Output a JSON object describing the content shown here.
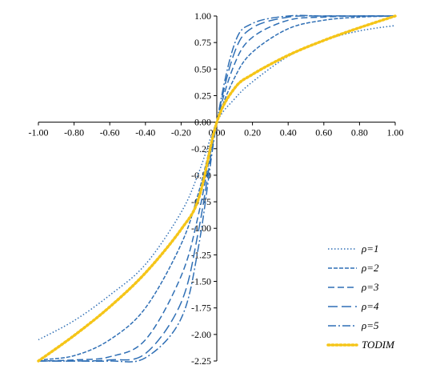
{
  "chart_data": {
    "type": "line",
    "title": "",
    "xlabel": "",
    "ylabel": "",
    "xlim": [
      -1.0,
      1.0
    ],
    "ylim": [
      -2.25,
      1.0
    ],
    "x_ticks": [
      "-1.00",
      "-0.80",
      "-0.60",
      "-0.40",
      "-0.20",
      "0.00",
      "0.20",
      "0.40",
      "0.60",
      "0.80",
      "1.00"
    ],
    "y_ticks": [
      "1.00",
      "0.75",
      "0.50",
      "0.25",
      "0.00",
      "-0.25",
      "-0.50",
      "-0.75",
      "-1.00",
      "-1.25",
      "-1.50",
      "-1.75",
      "-2.00",
      "-2.25"
    ],
    "legend_position": "bottom-right",
    "series": [
      {
        "name": "ρ=1",
        "color": "#2f6fb5",
        "dash": "1.5,2.5",
        "width": 1.5,
        "x": [
          -1.0,
          -0.8,
          -0.6,
          -0.4,
          -0.2,
          -0.1,
          0.0,
          0.1,
          0.2,
          0.4,
          0.6,
          0.8,
          1.0
        ],
        "y": [
          -2.05,
          -1.87,
          -1.63,
          -1.34,
          -0.85,
          -0.47,
          0.0,
          0.22,
          0.38,
          0.62,
          0.77,
          0.86,
          0.91
        ]
      },
      {
        "name": "ρ=2",
        "color": "#2f6fb5",
        "dash": "5,2",
        "width": 1.5,
        "x": [
          -1.0,
          -0.8,
          -0.6,
          -0.4,
          -0.2,
          -0.1,
          0.0,
          0.1,
          0.2,
          0.4,
          0.6,
          0.8,
          1.0
        ],
        "y": [
          -2.24,
          -2.2,
          -2.05,
          -1.75,
          -1.15,
          -0.65,
          0.0,
          0.42,
          0.66,
          0.88,
          0.96,
          0.99,
          1.0
        ]
      },
      {
        "name": "ρ=3",
        "color": "#2f6fb5",
        "dash": "8,4",
        "width": 1.5,
        "x": [
          -1.0,
          -0.8,
          -0.6,
          -0.4,
          -0.2,
          -0.1,
          0.0,
          0.1,
          0.2,
          0.4,
          0.6,
          0.8,
          1.0
        ],
        "y": [
          -2.25,
          -2.24,
          -2.21,
          -2.05,
          -1.45,
          -0.85,
          0.0,
          0.55,
          0.8,
          0.96,
          0.99,
          1.0,
          1.0
        ]
      },
      {
        "name": "ρ=4",
        "color": "#2f6fb5",
        "dash": "12,5",
        "width": 1.5,
        "x": [
          -1.0,
          -0.8,
          -0.6,
          -0.4,
          -0.2,
          -0.1,
          0.0,
          0.1,
          0.2,
          0.4,
          0.6,
          0.8,
          1.0
        ],
        "y": [
          -2.25,
          -2.25,
          -2.24,
          -2.18,
          -1.7,
          -1.0,
          0.0,
          0.66,
          0.89,
          0.99,
          1.0,
          1.0,
          1.0
        ]
      },
      {
        "name": "ρ=5",
        "color": "#2f6fb5",
        "dash": "10,3,2,3",
        "width": 1.5,
        "x": [
          -1.0,
          -0.8,
          -0.6,
          -0.4,
          -0.2,
          -0.1,
          0.0,
          0.1,
          0.2,
          0.4,
          0.6,
          0.8,
          1.0
        ],
        "y": [
          -2.25,
          -2.25,
          -2.25,
          -2.22,
          -1.85,
          -1.15,
          0.0,
          0.74,
          0.93,
          1.0,
          1.0,
          1.0,
          1.0
        ]
      },
      {
        "name": "TODIM",
        "color": "#f5c518",
        "dash": "2,3",
        "width": 3.5,
        "x": [
          -1.0,
          -0.8,
          -0.6,
          -0.4,
          -0.2,
          -0.1,
          0.0,
          0.1,
          0.2,
          0.4,
          0.6,
          0.8,
          1.0
        ],
        "y": [
          -2.25,
          -2.01,
          -1.74,
          -1.42,
          -1.01,
          -0.71,
          0.0,
          0.32,
          0.45,
          0.63,
          0.77,
          0.89,
          1.0
        ]
      }
    ]
  }
}
